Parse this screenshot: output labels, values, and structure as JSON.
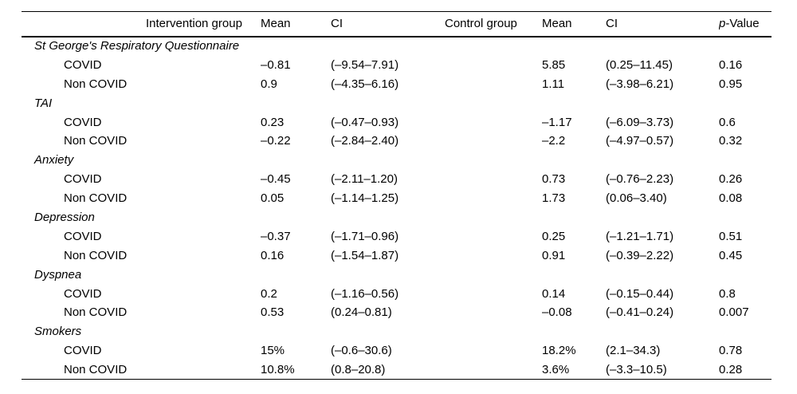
{
  "table": {
    "header": {
      "intervention_group": "Intervention group",
      "mean1": "Mean",
      "ci1": "CI",
      "control_group": "Control group",
      "mean2": "Mean",
      "ci2": "CI",
      "p_italic": "p",
      "p_rest": "-Value"
    },
    "sections": [
      {
        "title": "St George's Respiratory Questionnaire",
        "rows": [
          {
            "label": "COVID",
            "i_mean": "–0.81",
            "i_ci": "(–9.54–7.91)",
            "c_mean": "5.85",
            "c_ci": "(0.25–11.45)",
            "p": "0.16"
          },
          {
            "label": "Non COVID",
            "i_mean": "0.9",
            "i_ci": "(–4.35–6.16)",
            "c_mean": "1.11",
            "c_ci": "(–3.98–6.21)",
            "p": "0.95"
          }
        ]
      },
      {
        "title": "TAI",
        "rows": [
          {
            "label": "COVID",
            "i_mean": "0.23",
            "i_ci": "(–0.47–0.93)",
            "c_mean": "–1.17",
            "c_ci": "(–6.09–3.73)",
            "p": "0.6"
          },
          {
            "label": "Non COVID",
            "i_mean": "–0.22",
            "i_ci": "(–2.84–2.40)",
            "c_mean": "–2.2",
            "c_ci": "(–4.97–0.57)",
            "p": "0.32"
          }
        ]
      },
      {
        "title": "Anxiety",
        "rows": [
          {
            "label": "COVID",
            "i_mean": "–0.45",
            "i_ci": "(–2.11–1.20)",
            "c_mean": "0.73",
            "c_ci": "(–0.76–2.23)",
            "p": "0.26"
          },
          {
            "label": "Non COVID",
            "i_mean": "0.05",
            "i_ci": "(–1.14–1.25)",
            "c_mean": "1.73",
            "c_ci": "(0.06–3.40)",
            "p": "0.08"
          }
        ]
      },
      {
        "title": "Depression",
        "rows": [
          {
            "label": "COVID",
            "i_mean": "–0.37",
            "i_ci": "(–1.71–0.96)",
            "c_mean": "0.25",
            "c_ci": "(–1.21–1.71)",
            "p": "0.51"
          },
          {
            "label": "Non COVID",
            "i_mean": "0.16",
            "i_ci": "(–1.54–1.87)",
            "c_mean": "0.91",
            "c_ci": "(–0.39–2.22)",
            "p": "0.45"
          }
        ]
      },
      {
        "title": "Dyspnea",
        "rows": [
          {
            "label": "COVID",
            "i_mean": "0.2",
            "i_ci": "(–1.16–0.56)",
            "c_mean": "0.14",
            "c_ci": "(–0.15–0.44)",
            "p": "0.8"
          },
          {
            "label": "Non COVID",
            "i_mean": "0.53",
            "i_ci": "(0.24–0.81)",
            "c_mean": "–0.08",
            "c_ci": "(–0.41–0.24)",
            "p": "0.007"
          }
        ]
      },
      {
        "title": "Smokers",
        "rows": [
          {
            "label": "COVID",
            "i_mean": "15%",
            "i_ci": "(–0.6–30.6)",
            "c_mean": "18.2%",
            "c_ci": "(2.1–34.3)",
            "p": "0.78"
          },
          {
            "label": "Non COVID",
            "i_mean": "10.8%",
            "i_ci": "(0.8–20.8)",
            "c_mean": "3.6%",
            "c_ci": "(–3.3–10.5)",
            "p": "0.28"
          }
        ]
      }
    ]
  }
}
